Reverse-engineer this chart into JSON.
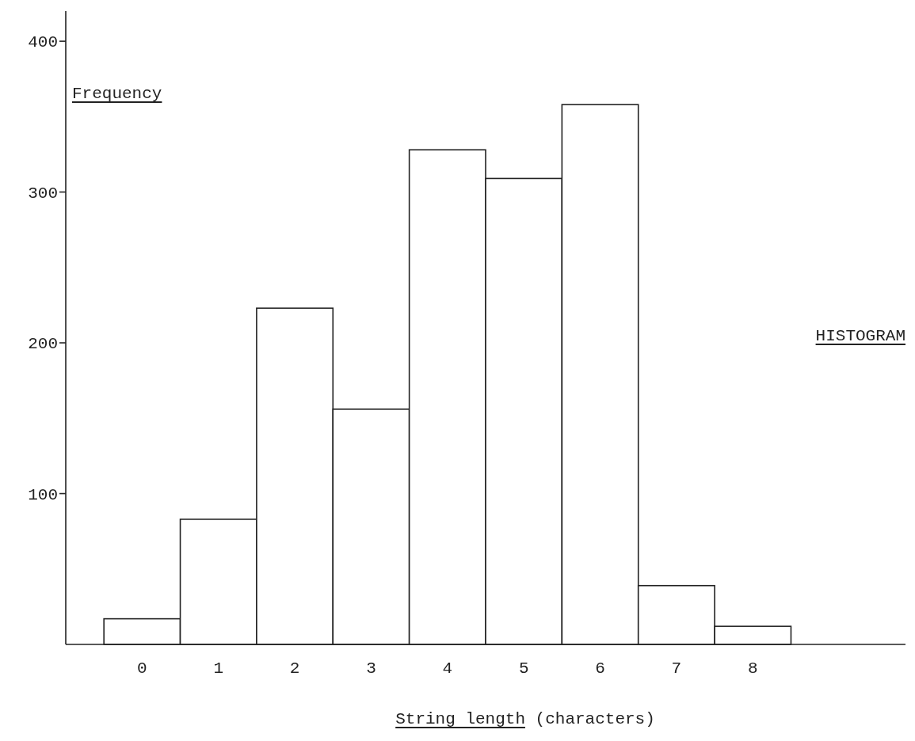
{
  "chart_data": {
    "type": "histogram",
    "title": "HISTOGRAM",
    "xlabel": "String length (characters)",
    "ylabel": "Frequency",
    "bins": [
      -0.5,
      0.5,
      1.5,
      2.5,
      3.5,
      4.5,
      5.5,
      6.5,
      7.5,
      8.5
    ],
    "values": [
      17,
      83,
      223,
      156,
      328,
      309,
      358,
      39,
      12
    ],
    "xlim": [
      -1,
      10
    ],
    "xticks": [
      0,
      1,
      2,
      3,
      4,
      5,
      6,
      7,
      8
    ],
    "ylim": [
      0,
      420
    ],
    "yticks": [
      100,
      200,
      300,
      400
    ]
  }
}
